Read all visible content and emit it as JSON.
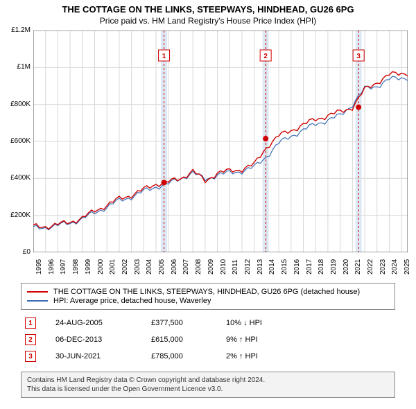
{
  "chart": {
    "type": "line",
    "title_line1": "THE COTTAGE ON THE LINKS, STEEPWAYS, HINDHEAD, GU26 6PG",
    "title_line2": "Price paid vs. HM Land Registry's House Price Index (HPI)",
    "title_fontsize": 13,
    "subtitle_fontsize": 12,
    "background_color": "#ffffff",
    "plot_bg": "#ffffff",
    "grid_color": "#d8d8d8",
    "axis_color": "#444444",
    "x_years": [
      1995,
      1996,
      1997,
      1998,
      1999,
      2000,
      2001,
      2002,
      2003,
      2004,
      2005,
      2006,
      2007,
      2008,
      2009,
      2010,
      2011,
      2012,
      2013,
      2014,
      2015,
      2016,
      2017,
      2018,
      2019,
      2020,
      2021,
      2022,
      2023,
      2024,
      2025
    ],
    "xlim": [
      1995,
      2025.5
    ],
    "ylim": [
      0,
      1200000
    ],
    "ytick_step": 200000,
    "ytick_labels": [
      "£0",
      "£200K",
      "£400K",
      "£600K",
      "£800K",
      "£1M",
      "£1.2M"
    ],
    "label_fontsize": 10,
    "vband_color": "#dde8f5",
    "vline_color": "#d00000",
    "vline_dash": "3,3",
    "marker_fill": "#d00000",
    "series": [
      {
        "name": "cottage",
        "color": "#d00000",
        "width": 1.4,
        "legend": "THE COTTAGE ON THE LINKS, STEEPWAYS, HINDHEAD, GU26 6PG (detached house)",
        "y": [
          140000,
          140000,
          150000,
          165000,
          185000,
          225000,
          255000,
          290000,
          310000,
          340000,
          370000,
          380000,
          400000,
          440000,
          385000,
          430000,
          440000,
          450000,
          475000,
          570000,
          630000,
          660000,
          690000,
          720000,
          740000,
          760000,
          785000,
          880000,
          920000,
          960000,
          970000
        ]
      },
      {
        "name": "hpi",
        "color": "#3b6db4",
        "width": 1.2,
        "legend": "HPI: Average price, detached house, Waverley",
        "y": [
          130000,
          135000,
          145000,
          160000,
          180000,
          215000,
          245000,
          280000,
          300000,
          330000,
          355000,
          370000,
          400000,
          430000,
          395000,
          420000,
          430000,
          440000,
          460000,
          520000,
          590000,
          630000,
          660000,
          695000,
          715000,
          740000,
          800000,
          885000,
          900000,
          935000,
          945000
        ]
      }
    ],
    "event_bands": [
      {
        "x": 2005.65,
        "w": 0.5
      },
      {
        "x": 2013.93,
        "w": 0.5
      },
      {
        "x": 2021.5,
        "w": 0.5
      }
    ],
    "event_points": [
      {
        "n": "1",
        "x": 2005.65,
        "y": 377500
      },
      {
        "n": "2",
        "x": 2013.93,
        "y": 615000
      },
      {
        "n": "3",
        "x": 2021.5,
        "y": 785000
      }
    ],
    "badge_border": "#d00000",
    "badge_text_color": "#d00000"
  },
  "markers_table": [
    {
      "n": "1",
      "date": "24-AUG-2005",
      "price": "£377,500",
      "diff": "10% ↓ HPI"
    },
    {
      "n": "2",
      "date": "06-DEC-2013",
      "price": "£615,000",
      "diff": "9% ↑ HPI"
    },
    {
      "n": "3",
      "date": "30-JUN-2021",
      "price": "£785,000",
      "diff": "2% ↑ HPI"
    }
  ],
  "footer": {
    "line1": "Contains HM Land Registry data © Crown copyright and database right 2024.",
    "line2": "This data is licensed under the Open Government Licence v3.0."
  }
}
